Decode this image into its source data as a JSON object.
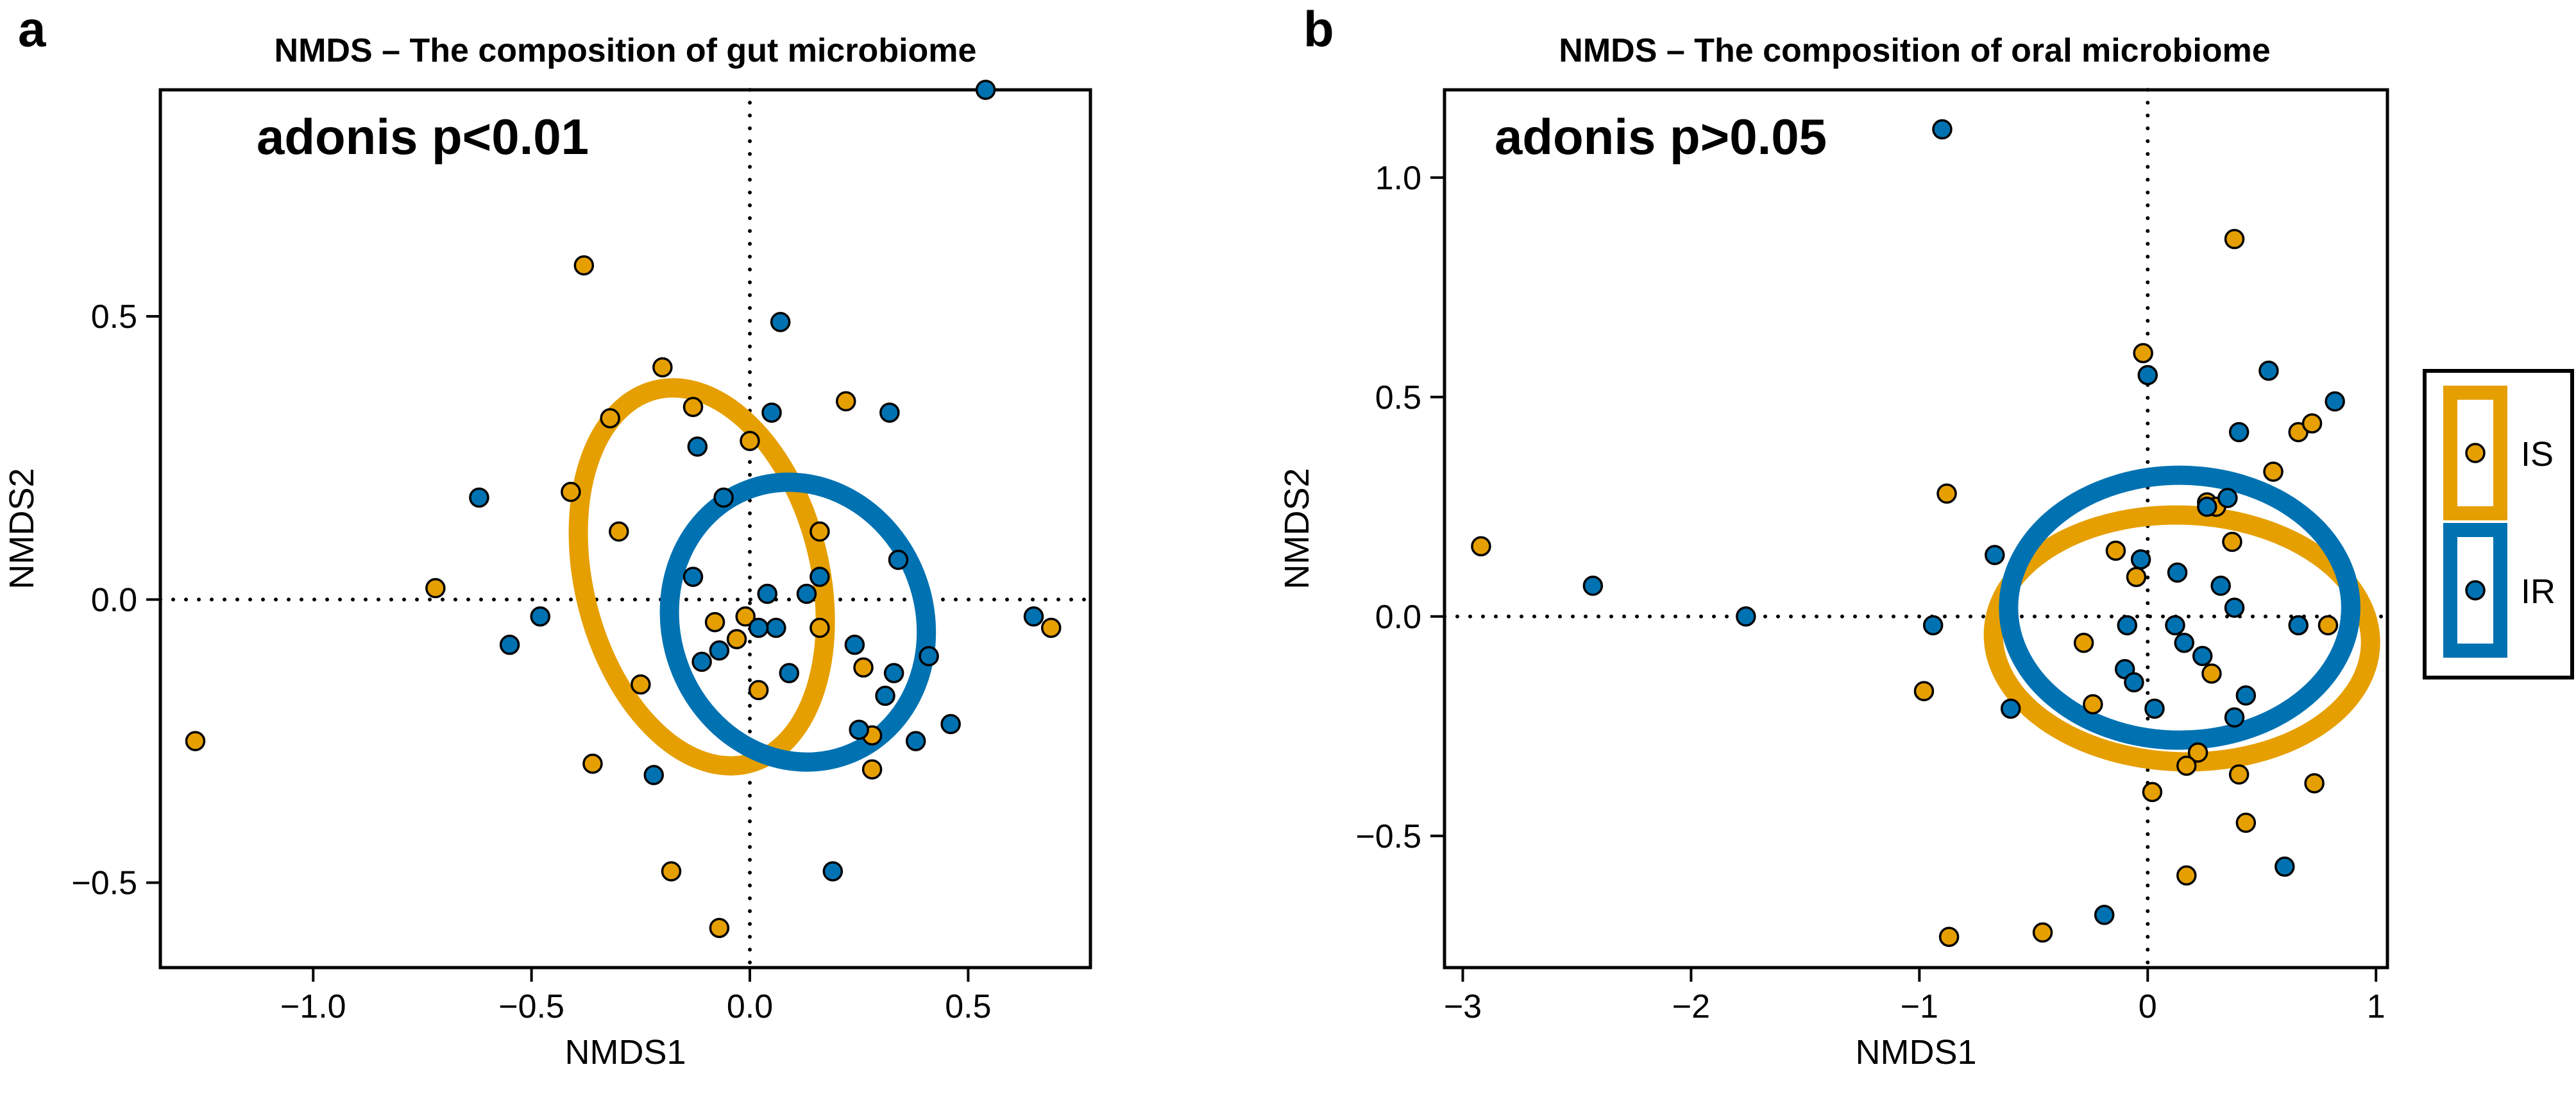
{
  "colors": {
    "IS": "#E69F00",
    "IR": "#0072B2",
    "axis": "#000000",
    "point_edge": "#000000"
  },
  "legend": {
    "placement": "right",
    "entries": [
      {
        "key": "IS",
        "label": "IS"
      },
      {
        "key": "IR",
        "label": "IR"
      }
    ]
  },
  "chart_data": [
    {
      "panel": "a",
      "type": "scatter",
      "title": "NMDS – The composition of gut microbiome",
      "annotation": "adonis p<0.01",
      "xlabel": "NMDS1",
      "ylabel": "NMDS2",
      "xlim": [
        -1.35,
        0.78
      ],
      "ylim": [
        -0.65,
        0.9
      ],
      "xticks": [
        -1.0,
        -0.5,
        0.0,
        0.5
      ],
      "xtick_labels": [
        "−1.0",
        "−0.5",
        "0.0",
        "0.5"
      ],
      "yticks": [
        -0.5,
        0.0,
        0.5
      ],
      "ytick_labels": [
        "−0.5",
        "0.0",
        "0.5"
      ],
      "reference_lines": {
        "x": 0,
        "y": 0,
        "style": "dotted"
      },
      "grid": false,
      "series": [
        {
          "name": "IS",
          "points": [
            [
              -1.27,
              -0.25
            ],
            [
              -0.72,
              0.02
            ],
            [
              -0.38,
              0.59
            ],
            [
              -0.41,
              0.19
            ],
            [
              -0.32,
              0.32
            ],
            [
              -0.3,
              0.12
            ],
            [
              -0.2,
              0.41
            ],
            [
              -0.13,
              0.34
            ],
            [
              -0.25,
              -0.15
            ],
            [
              -0.36,
              -0.29
            ],
            [
              -0.18,
              -0.48
            ],
            [
              -0.07,
              -0.58
            ],
            [
              -0.08,
              -0.04
            ],
            [
              -0.03,
              -0.07
            ],
            [
              -0.01,
              -0.03
            ],
            [
              0.02,
              -0.16
            ],
            [
              0.0,
              0.28
            ],
            [
              0.22,
              0.35
            ],
            [
              0.16,
              0.12
            ],
            [
              0.16,
              -0.05
            ],
            [
              0.26,
              -0.12
            ],
            [
              0.28,
              -0.24
            ],
            [
              0.28,
              -0.3
            ],
            [
              0.69,
              -0.05
            ]
          ]
        },
        {
          "name": "IR",
          "points": [
            [
              -0.62,
              0.18
            ],
            [
              -0.55,
              -0.08
            ],
            [
              -0.48,
              -0.03
            ],
            [
              -0.12,
              0.27
            ],
            [
              -0.06,
              0.18
            ],
            [
              -0.13,
              0.04
            ],
            [
              -0.11,
              -0.11
            ],
            [
              -0.07,
              -0.09
            ],
            [
              -0.22,
              -0.31
            ],
            [
              0.05,
              0.33
            ],
            [
              0.07,
              0.49
            ],
            [
              0.13,
              0.01
            ],
            [
              0.04,
              0.01
            ],
            [
              0.06,
              -0.05
            ],
            [
              0.02,
              -0.05
            ],
            [
              0.09,
              -0.13
            ],
            [
              0.16,
              0.04
            ],
            [
              0.32,
              0.33
            ],
            [
              0.24,
              -0.08
            ],
            [
              0.25,
              -0.23
            ],
            [
              0.31,
              -0.17
            ],
            [
              0.33,
              -0.13
            ],
            [
              0.38,
              -0.25
            ],
            [
              0.41,
              -0.1
            ],
            [
              0.46,
              -0.22
            ],
            [
              0.34,
              0.07
            ],
            [
              0.19,
              -0.48
            ],
            [
              0.54,
              0.9
            ],
            [
              0.65,
              -0.03
            ]
          ]
        }
      ],
      "ellipses": [
        {
          "series": "IS",
          "center": [
            -0.11,
            0.04
          ],
          "semi_x": 0.27,
          "semi_y": 0.34,
          "tilt_deg": 14
        },
        {
          "series": "IR",
          "center": [
            0.11,
            -0.04
          ],
          "semi_x": 0.29,
          "semi_y": 0.25,
          "tilt_deg": 20
        }
      ]
    },
    {
      "panel": "b",
      "type": "scatter",
      "title": "NMDS – The composition of oral microbiome",
      "annotation": "adonis p>0.05",
      "xlabel": "NMDS1",
      "ylabel": "NMDS2",
      "xlim": [
        -3.08,
        1.05
      ],
      "ylim": [
        -0.8,
        1.2
      ],
      "xticks": [
        -3,
        -2,
        -1,
        0,
        1
      ],
      "xtick_labels": [
        "−3",
        "−2",
        "−1",
        "0",
        "1"
      ],
      "yticks": [
        -0.5,
        0.0,
        0.5,
        1.0
      ],
      "ytick_labels": [
        "−0.5",
        "0.0",
        "0.5",
        "1.0"
      ],
      "reference_lines": {
        "x": 0,
        "y": 0,
        "style": "dotted"
      },
      "grid": false,
      "series": [
        {
          "name": "IS",
          "points": [
            [
              -2.92,
              0.16
            ],
            [
              -0.88,
              0.28
            ],
            [
              -0.98,
              -0.17
            ],
            [
              -0.87,
              -0.73
            ],
            [
              -0.46,
              -0.72
            ],
            [
              -0.28,
              -0.06
            ],
            [
              -0.24,
              -0.2
            ],
            [
              -0.14,
              0.15
            ],
            [
              -0.05,
              0.09
            ],
            [
              -0.02,
              0.6
            ],
            [
              0.22,
              -0.31
            ],
            [
              0.17,
              -0.34
            ],
            [
              0.28,
              -0.13
            ],
            [
              0.26,
              0.26
            ],
            [
              0.38,
              0.86
            ],
            [
              0.37,
              0.17
            ],
            [
              0.3,
              0.25
            ],
            [
              0.4,
              -0.36
            ],
            [
              0.43,
              -0.47
            ],
            [
              0.55,
              0.33
            ],
            [
              0.66,
              0.42
            ],
            [
              0.72,
              0.44
            ],
            [
              0.73,
              -0.38
            ],
            [
              0.79,
              -0.02
            ],
            [
              0.17,
              -0.59
            ],
            [
              0.02,
              -0.4
            ]
          ]
        },
        {
          "name": "IR",
          "points": [
            [
              -2.43,
              0.07
            ],
            [
              -1.76,
              0.0
            ],
            [
              -0.9,
              1.11
            ],
            [
              -0.94,
              -0.02
            ],
            [
              -0.67,
              0.14
            ],
            [
              -0.6,
              -0.21
            ],
            [
              -0.09,
              -0.02
            ],
            [
              -0.1,
              -0.12
            ],
            [
              -0.06,
              -0.15
            ],
            [
              -0.03,
              0.13
            ],
            [
              0.0,
              0.55
            ],
            [
              0.03,
              -0.21
            ],
            [
              0.13,
              0.1
            ],
            [
              0.16,
              -0.06
            ],
            [
              0.24,
              -0.09
            ],
            [
              0.26,
              0.25
            ],
            [
              0.32,
              0.07
            ],
            [
              0.35,
              0.27
            ],
            [
              0.38,
              0.02
            ],
            [
              0.38,
              -0.23
            ],
            [
              0.4,
              0.42
            ],
            [
              0.43,
              -0.18
            ],
            [
              0.53,
              0.56
            ],
            [
              0.6,
              -0.57
            ],
            [
              0.66,
              -0.02
            ],
            [
              0.82,
              0.49
            ],
            [
              0.12,
              -0.02
            ],
            [
              -0.19,
              -0.68
            ]
          ]
        }
      ],
      "ellipses": [
        {
          "series": "IS",
          "center": [
            0.15,
            -0.05
          ],
          "semi_x": 0.54,
          "semi_y": 0.43,
          "tilt_deg": 88
        },
        {
          "series": "IR",
          "center": [
            0.14,
            0.02
          ],
          "semi_x": 0.58,
          "semi_y": 0.39,
          "tilt_deg": 90
        }
      ]
    }
  ]
}
